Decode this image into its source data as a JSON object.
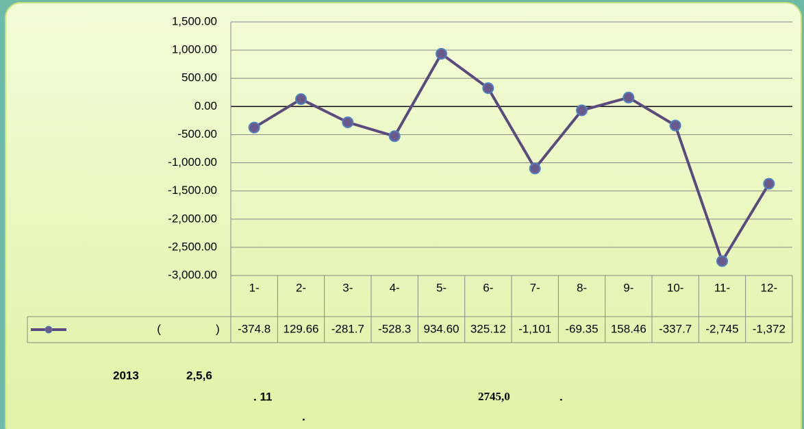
{
  "chart_data": {
    "type": "line",
    "categories": [
      "1-",
      "2-",
      "3-",
      "4-",
      "5-",
      "6-",
      "7-",
      "8-",
      "9-",
      "10-",
      "11-",
      "12-"
    ],
    "series": [
      {
        "name": "(                 )",
        "color": "#5b4a7c",
        "marker_color": "#6a5a8c",
        "marker_edge": "#4f81bd",
        "values": [
          -374.8,
          129.66,
          -281.7,
          -528.3,
          934.6,
          325.12,
          -1101,
          -69.35,
          158.46,
          -337.7,
          -2745,
          -1372
        ],
        "value_labels": [
          "-374.8",
          "129.66",
          "-281.7",
          "-528.3",
          "934.60",
          "325.12",
          "-1,101",
          "-69.35",
          "158.46",
          "-337.7",
          "-2,745",
          "-1,372"
        ]
      }
    ],
    "ylim": [
      -3000,
      1500
    ],
    "yticks": [
      {
        "value": -3000,
        "label": "-3,000.00"
      },
      {
        "value": -2500,
        "label": "-2,500.00"
      },
      {
        "value": -2000,
        "label": "-2,000.00"
      },
      {
        "value": -1500,
        "label": "-1,500.00"
      },
      {
        "value": -1000,
        "label": "-1,000.00"
      },
      {
        "value": -500,
        "label": "-500.00"
      },
      {
        "value": 0,
        "label": "0.00"
      },
      {
        "value": 500,
        "label": "500.00"
      },
      {
        "value": 1000,
        "label": "1,000.00"
      },
      {
        "value": 1500,
        "label": "1,500.00"
      }
    ],
    "grid": true
  },
  "notes": [
    "2013",
    "2,5,6",
    ". 11",
    "2745,0",
    ".",
    "."
  ]
}
